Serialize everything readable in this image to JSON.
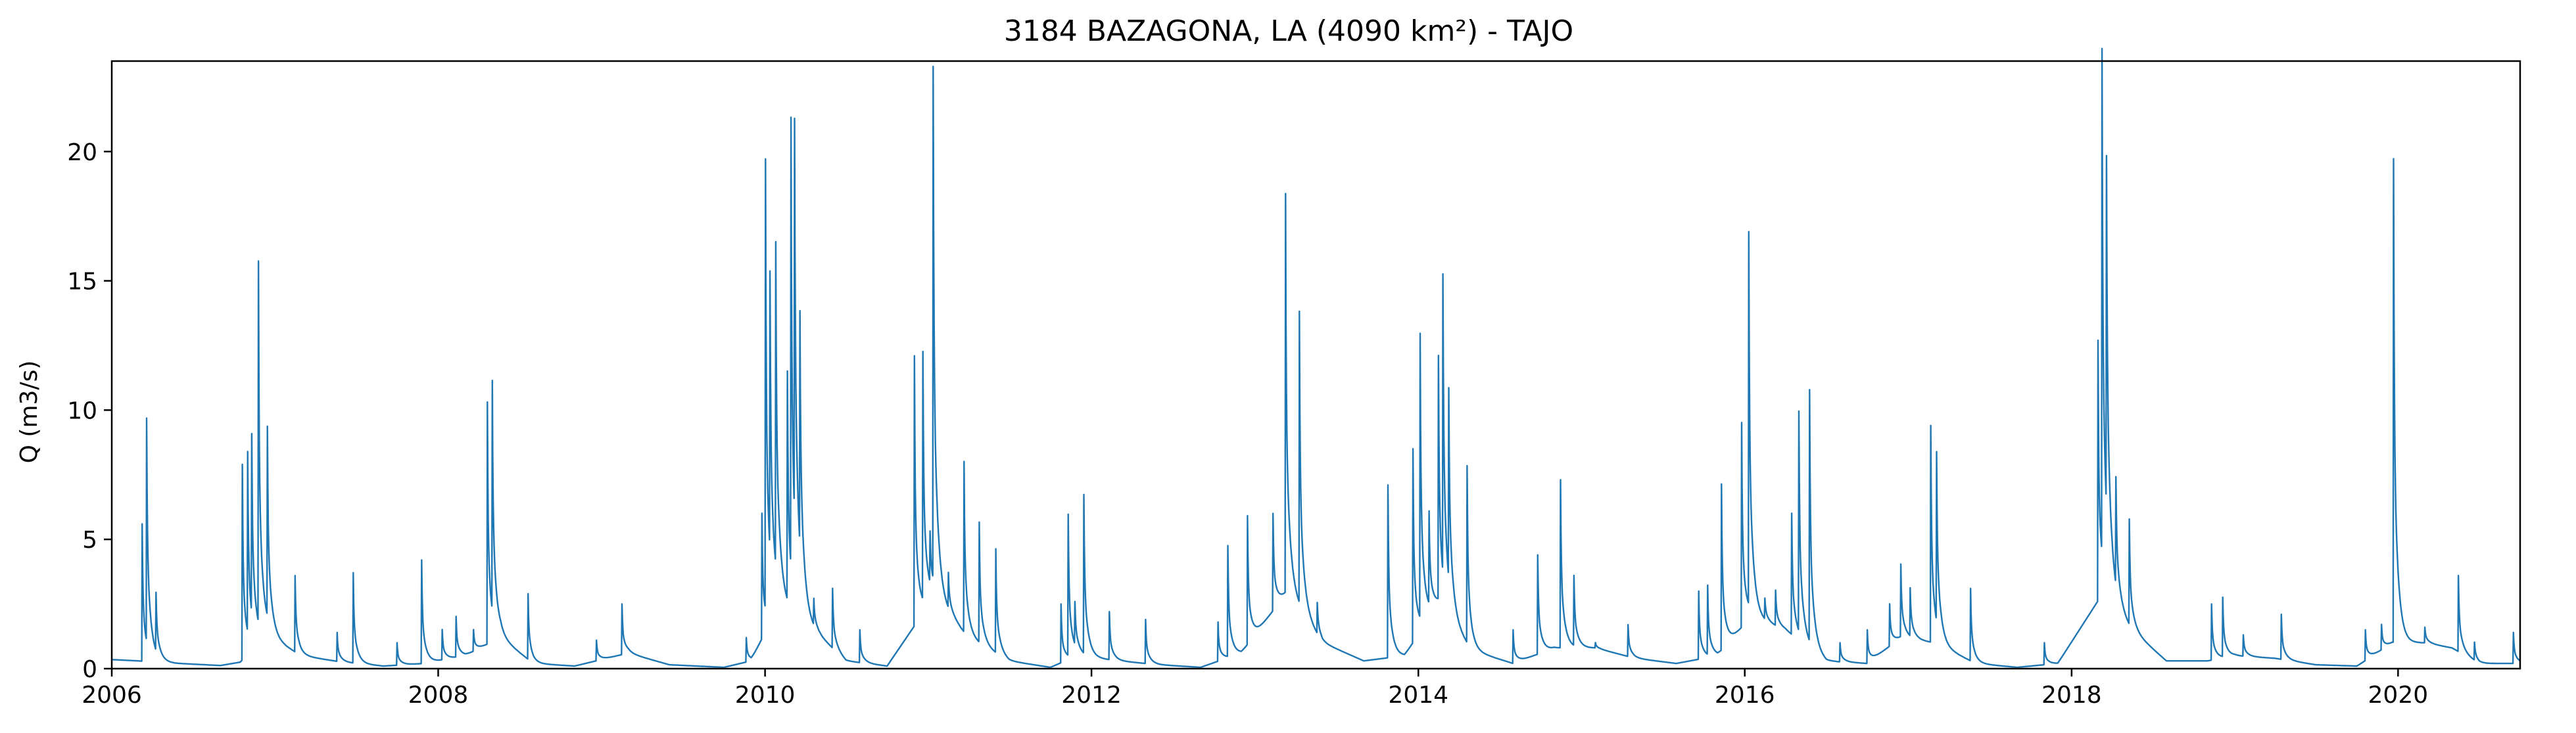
{
  "chart_data": {
    "type": "line",
    "title": "3184 BAZAGONA, LA (4090 km²) - TAJO",
    "xlabel": "",
    "ylabel": "Q (m3/s)",
    "xlim": [
      "2006-01-01",
      "2020-09-30"
    ],
    "ylim": [
      0,
      23.5
    ],
    "x_ticks": [
      2006,
      2008,
      2010,
      2012,
      2014,
      2016,
      2018,
      2020
    ],
    "x_tick_labels": [
      "2006",
      "2008",
      "2010",
      "2012",
      "2014",
      "2016",
      "2018",
      "2020"
    ],
    "y_ticks": [
      0,
      5,
      10,
      15,
      20
    ],
    "y_tick_labels": [
      "0",
      "5",
      "10",
      "15",
      "20"
    ],
    "grid": false,
    "legend": "none",
    "line_color": "#1f77b4",
    "baseline": [
      [
        "2006-01-01",
        0.35
      ],
      [
        "2006-03-01",
        0.3
      ],
      [
        "2006-06-01",
        0.2
      ],
      [
        "2006-09-01",
        0.12
      ],
      [
        "2006-10-15",
        0.25
      ],
      [
        "2006-12-15",
        1.3
      ],
      [
        "2007-03-01",
        0.5
      ],
      [
        "2007-06-01",
        0.25
      ],
      [
        "2007-09-01",
        0.1
      ],
      [
        "2007-12-01",
        0.2
      ],
      [
        "2008-03-01",
        0.5
      ],
      [
        "2008-05-20",
        1.2
      ],
      [
        "2008-08-01",
        0.2
      ],
      [
        "2008-11-01",
        0.1
      ],
      [
        "2009-03-01",
        0.6
      ],
      [
        "2009-06-01",
        0.15
      ],
      [
        "2009-10-01",
        0.05
      ],
      [
        "2009-12-01",
        0.3
      ],
      [
        "2010-02-01",
        2.5
      ],
      [
        "2010-04-01",
        1.8
      ],
      [
        "2010-07-01",
        0.3
      ],
      [
        "2010-10-01",
        0.1
      ],
      [
        "2011-01-15",
        2.8
      ],
      [
        "2011-04-01",
        1.2
      ],
      [
        "2011-07-01",
        0.3
      ],
      [
        "2011-10-01",
        0.05
      ],
      [
        "2011-12-01",
        0.5
      ],
      [
        "2012-03-01",
        0.3
      ],
      [
        "2012-06-01",
        0.15
      ],
      [
        "2012-09-01",
        0.05
      ],
      [
        "2012-12-01",
        0.6
      ],
      [
        "2013-03-15",
        3.0
      ],
      [
        "2013-06-01",
        1.0
      ],
      [
        "2013-09-01",
        0.3
      ],
      [
        "2013-12-01",
        0.5
      ],
      [
        "2014-02-15",
        2.5
      ],
      [
        "2014-05-01",
        0.7
      ],
      [
        "2014-08-01",
        0.2
      ],
      [
        "2014-11-01",
        0.8
      ],
      [
        "2015-02-01",
        0.8
      ],
      [
        "2015-05-01",
        0.4
      ],
      [
        "2015-08-01",
        0.2
      ],
      [
        "2015-11-01",
        0.5
      ],
      [
        "2016-01-15",
        2.0
      ],
      [
        "2016-04-01",
        1.5
      ],
      [
        "2016-07-01",
        0.3
      ],
      [
        "2016-10-01",
        0.2
      ],
      [
        "2016-12-15",
        1.2
      ],
      [
        "2017-03-01",
        1.0
      ],
      [
        "2017-06-01",
        0.2
      ],
      [
        "2017-09-01",
        0.05
      ],
      [
        "2017-12-01",
        0.2
      ],
      [
        "2018-03-15",
        3.0
      ],
      [
        "2018-05-15",
        1.5
      ],
      [
        "2018-08-01",
        0.3
      ],
      [
        "2018-11-01",
        0.3
      ],
      [
        "2019-01-01",
        0.5
      ],
      [
        "2019-04-01",
        0.4
      ],
      [
        "2019-07-01",
        0.15
      ],
      [
        "2019-10-01",
        0.1
      ],
      [
        "2019-12-20",
        1.0
      ],
      [
        "2020-03-01",
        1.0
      ],
      [
        "2020-05-01",
        0.8
      ],
      [
        "2020-07-01",
        0.2
      ],
      [
        "2020-09-30",
        0.2
      ]
    ],
    "peaks": [
      [
        "2006-03-10",
        5.6
      ],
      [
        "2006-03-20",
        8.9
      ],
      [
        "2006-04-10",
        2.5
      ],
      [
        "2006-10-20",
        7.9
      ],
      [
        "2006-11-01",
        7.5
      ],
      [
        "2006-11-10",
        7.6
      ],
      [
        "2006-11-25",
        14.9
      ],
      [
        "2006-12-15",
        8.6
      ],
      [
        "2007-02-15",
        3.6
      ],
      [
        "2007-05-20",
        1.4
      ],
      [
        "2007-06-25",
        3.7
      ],
      [
        "2007-10-01",
        1.0
      ],
      [
        "2007-11-25",
        4.2
      ],
      [
        "2008-01-10",
        1.5
      ],
      [
        "2008-02-10",
        2.0
      ],
      [
        "2008-03-20",
        1.5
      ],
      [
        "2008-04-20",
        10.3
      ],
      [
        "2008-05-01",
        9.9
      ],
      [
        "2008-07-20",
        2.9
      ],
      [
        "2008-12-20",
        1.1
      ],
      [
        "2009-02-15",
        2.5
      ],
      [
        "2009-11-20",
        1.2
      ],
      [
        "2009-12-25",
        6.0
      ],
      [
        "2010-01-02",
        18.8
      ],
      [
        "2010-01-12",
        12.5
      ],
      [
        "2010-01-25",
        14.7
      ],
      [
        "2010-02-20",
        11.1
      ],
      [
        "2010-02-28",
        19.5
      ],
      [
        "2010-03-08",
        17.3
      ],
      [
        "2010-03-20",
        11.0
      ],
      [
        "2010-04-20",
        2.5
      ],
      [
        "2010-06-01",
        3.1
      ],
      [
        "2010-08-01",
        1.5
      ],
      [
        "2010-12-01",
        12.1
      ],
      [
        "2010-12-20",
        11.7
      ],
      [
        "2011-01-05",
        4.5
      ],
      [
        "2011-01-12",
        22.5
      ],
      [
        "2011-02-15",
        3.5
      ],
      [
        "2011-03-22",
        8.0
      ],
      [
        "2011-04-25",
        5.6
      ],
      [
        "2011-06-01",
        4.6
      ],
      [
        "2011-10-25",
        2.5
      ],
      [
        "2011-11-10",
        5.8
      ],
      [
        "2011-11-25",
        2.1
      ],
      [
        "2011-12-15",
        6.6
      ],
      [
        "2012-02-10",
        2.2
      ],
      [
        "2012-05-01",
        1.9
      ],
      [
        "2012-10-10",
        1.8
      ],
      [
        "2012-11-01",
        4.7
      ],
      [
        "2012-12-15",
        5.9
      ],
      [
        "2013-01-20",
        1.3
      ],
      [
        "2013-02-10",
        6.0
      ],
      [
        "2013-03-10",
        18.3
      ],
      [
        "2013-04-10",
        13.6
      ],
      [
        "2013-05-20",
        2.5
      ],
      [
        "2013-10-25",
        7.1
      ],
      [
        "2013-12-20",
        8.5
      ],
      [
        "2014-01-05",
        12.4
      ],
      [
        "2014-01-25",
        5.5
      ],
      [
        "2014-02-15",
        11.9
      ],
      [
        "2014-02-25",
        13.8
      ],
      [
        "2014-03-10",
        9.3
      ],
      [
        "2014-04-20",
        7.8
      ],
      [
        "2014-08-01",
        1.5
      ],
      [
        "2014-09-25",
        4.4
      ],
      [
        "2014-11-15",
        7.3
      ],
      [
        "2014-12-15",
        3.5
      ],
      [
        "2015-02-01",
        1.0
      ],
      [
        "2015-04-15",
        1.7
      ],
      [
        "2015-09-20",
        3.0
      ],
      [
        "2015-10-10",
        3.1
      ],
      [
        "2015-11-10",
        7.1
      ],
      [
        "2015-12-10",
        1.2
      ],
      [
        "2015-12-25",
        9.5
      ],
      [
        "2016-01-10",
        16.3
      ],
      [
        "2016-02-15",
        2.6
      ],
      [
        "2016-03-10",
        3.0
      ],
      [
        "2016-04-15",
        6.0
      ],
      [
        "2016-05-01",
        9.6
      ],
      [
        "2016-05-25",
        10.5
      ],
      [
        "2016-08-01",
        1.0
      ],
      [
        "2016-10-01",
        1.5
      ],
      [
        "2016-11-20",
        2.5
      ],
      [
        "2016-12-15",
        4.0
      ],
      [
        "2017-01-05",
        3.0
      ],
      [
        "2017-02-20",
        9.4
      ],
      [
        "2017-03-05",
        7.5
      ],
      [
        "2017-05-20",
        3.1
      ],
      [
        "2017-11-01",
        1.0
      ],
      [
        "2018-03-01",
        12.7
      ],
      [
        "2018-03-10",
        22.3
      ],
      [
        "2018-03-20",
        16.4
      ],
      [
        "2018-04-10",
        6.5
      ],
      [
        "2018-05-10",
        5.7
      ],
      [
        "2018-11-10",
        2.5
      ],
      [
        "2018-12-05",
        2.7
      ],
      [
        "2019-01-20",
        1.3
      ],
      [
        "2019-04-15",
        2.1
      ],
      [
        "2019-10-20",
        1.5
      ],
      [
        "2019-11-25",
        1.7
      ],
      [
        "2019-12-22",
        19.7
      ],
      [
        "2020-03-01",
        1.6
      ],
      [
        "2020-05-15",
        3.6
      ],
      [
        "2020-06-20",
        1.0
      ],
      [
        "2020-09-15",
        1.4
      ]
    ]
  }
}
